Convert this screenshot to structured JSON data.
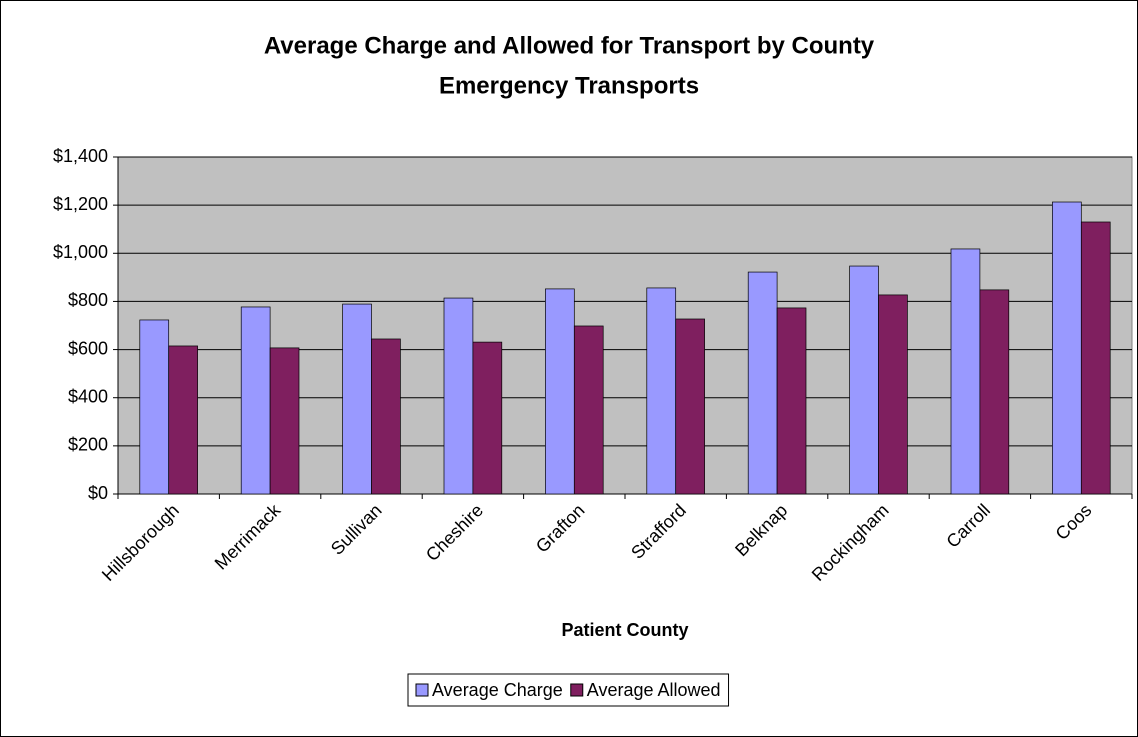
{
  "chart_data": {
    "type": "bar",
    "title": "Average Charge and Allowed for Transport by County",
    "subtitle": "Emergency Transports",
    "x_label": "Patient County",
    "categories": [
      "Hillsborough",
      "Merrimack",
      "Sullivan",
      "Cheshire",
      "Grafton",
      "Strafford",
      "Belknap",
      "Rockingham",
      "Carroll",
      "Coos"
    ],
    "series": [
      {
        "name": "Average Charge",
        "color": "#9999ff",
        "values": [
          723,
          777,
          789,
          814,
          852,
          856,
          922,
          947,
          1018,
          1213
        ]
      },
      {
        "name": "Average Allowed",
        "color": "#7f1f5f",
        "values": [
          615,
          607,
          644,
          631,
          698,
          727,
          773,
          827,
          848,
          1130
        ]
      }
    ],
    "ylim": [
      0,
      1400
    ],
    "yticks": [
      {
        "value": 0,
        "label": "$0"
      },
      {
        "value": 200,
        "label": "$200"
      },
      {
        "value": 400,
        "label": "$400"
      },
      {
        "value": 600,
        "label": "$600"
      },
      {
        "value": 800,
        "label": "$800"
      },
      {
        "value": 1000,
        "label": "$1,000"
      },
      {
        "value": 1200,
        "label": "$1,200"
      },
      {
        "value": 1400,
        "label": "$1,400"
      }
    ],
    "grid": true,
    "legend": "bottom"
  }
}
